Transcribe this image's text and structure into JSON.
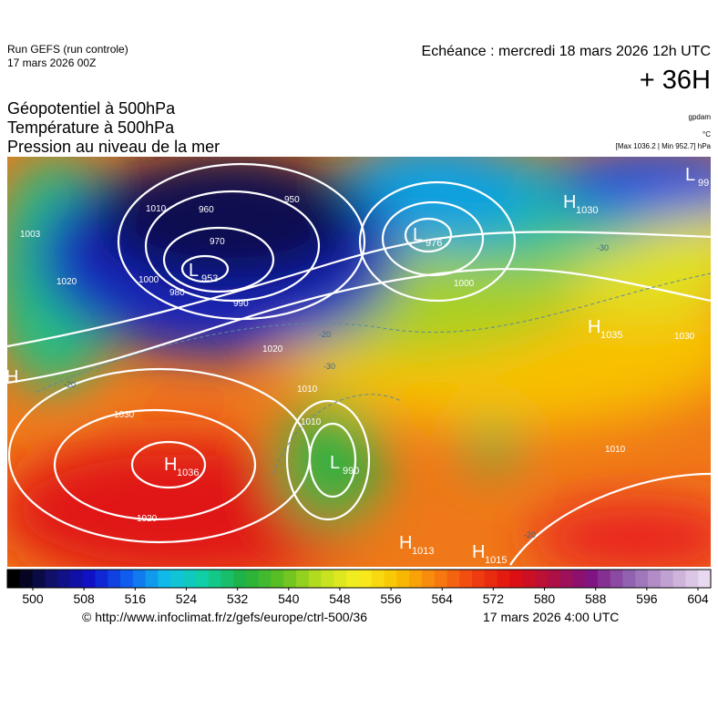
{
  "header": {
    "run": "Run GEFS (run controle)",
    "run_date": "17 mars 2026 00Z",
    "valid": "Echéance : mercredi 18 mars 2026 12h UTC",
    "lead": "+ 36H",
    "fields": [
      "Géopotentiel à 500hPa",
      "Température à 500hPa",
      "Pression au niveau de la mer"
    ],
    "units": [
      "gpdam",
      "°C",
      "[Max 1036.2 | Min 952.7] hPa"
    ]
  },
  "centers": [
    {
      "letter": "H",
      "value": 1036
    },
    {
      "letter": "L",
      "value": 990
    },
    {
      "letter": "L",
      "value": 953
    },
    {
      "letter": "L",
      "value": 976
    },
    {
      "letter": "H",
      "value": 1030
    },
    {
      "letter": "H",
      "value": 1035
    },
    {
      "letter": "H",
      "value": 1013
    },
    {
      "letter": "H",
      "value": 1015
    },
    {
      "letter": "L",
      "value": 99
    },
    {
      "letter": "H",
      "value": null
    }
  ],
  "isobar_labels": [
    1003,
    1020,
    1010,
    1000,
    980,
    970,
    960,
    950,
    990,
    1010,
    1020,
    1030,
    1020,
    1010,
    1000,
    1030,
    1010
  ],
  "temp_labels": [
    -20,
    -20,
    -30,
    -30,
    -20
  ],
  "colorbar": {
    "ticks": [
      500,
      508,
      516,
      524,
      532,
      540,
      548,
      556,
      564,
      572,
      580,
      588,
      596,
      604
    ]
  },
  "footer": {
    "source": "© http://www.infoclimat.fr/z/gefs/europe/ctrl-500/36",
    "date": "17 mars 2026  4:00 UTC"
  }
}
